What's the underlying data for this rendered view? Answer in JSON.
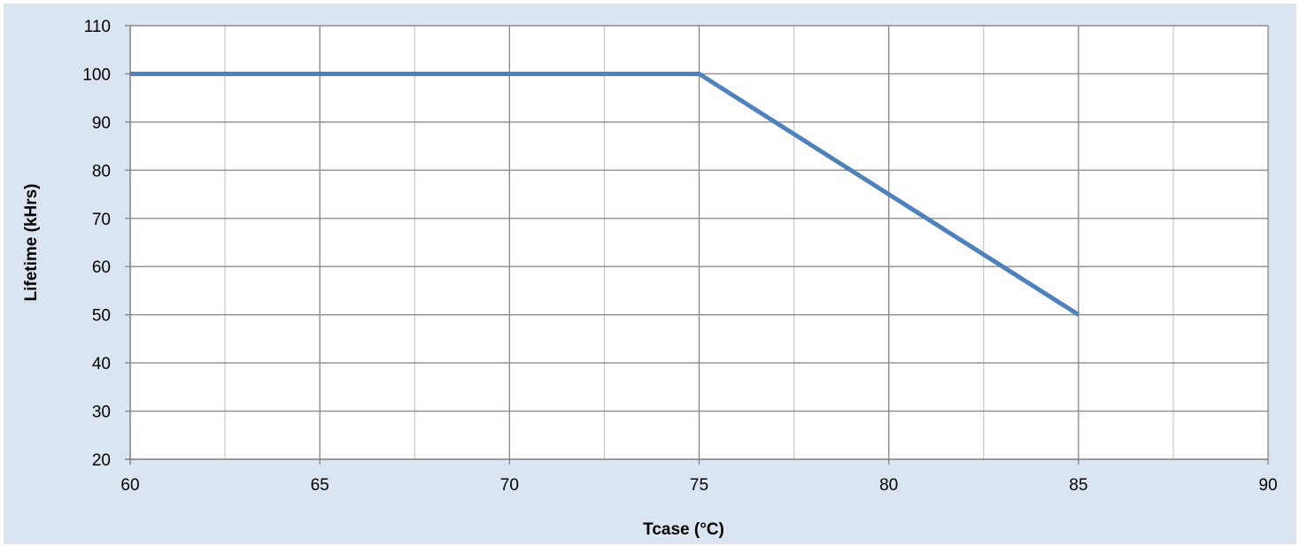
{
  "chart_data": {
    "type": "line",
    "title": "",
    "xlabel": "Tcase (°C)",
    "ylabel": "Lifetime (kHrs)",
    "xlim": [
      60,
      90
    ],
    "ylim": [
      20,
      110
    ],
    "x_ticks": [
      60,
      65,
      70,
      75,
      80,
      85,
      90
    ],
    "y_ticks": [
      20,
      30,
      40,
      50,
      60,
      70,
      80,
      90,
      100,
      110
    ],
    "x_minor_step": 2.5,
    "grid": true,
    "legend": "none",
    "series": [
      {
        "x": [
          60,
          75,
          85
        ],
        "y": [
          100,
          100,
          50
        ],
        "color": "#4f81bd"
      }
    ],
    "colors": {
      "background": "#dbe5f1",
      "plot_area": "#ffffff",
      "major_grid": "#8c8c8c",
      "minor_grid": "#c8c8c8"
    }
  }
}
